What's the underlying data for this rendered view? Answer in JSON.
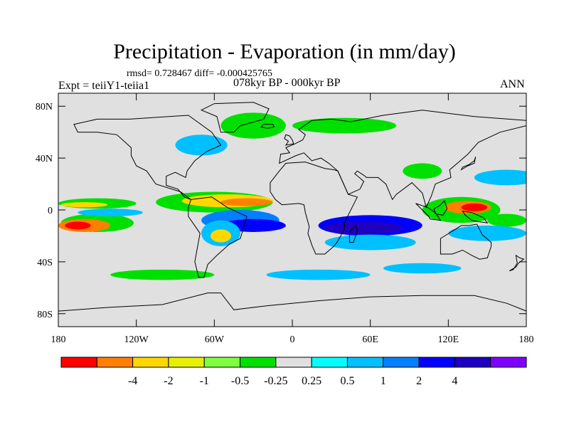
{
  "title": "Precipitation - Evaporation (in mm/day)",
  "stats": "rmsd= 0.728467  diff= -0.000425765",
  "experiment": "Expt = teiiY1-teiia1",
  "period": "078kyr BP - 000kyr BP",
  "season": "ANN",
  "lat_ticks": [
    {
      "label": "80N",
      "lat": 80
    },
    {
      "label": "40N",
      "lat": 40
    },
    {
      "label": "0",
      "lat": 0
    },
    {
      "label": "40S",
      "lat": -40
    },
    {
      "label": "80S",
      "lat": -80
    }
  ],
  "lon_ticks": [
    {
      "label": "180",
      "lon": -180
    },
    {
      "label": "120W",
      "lon": -120
    },
    {
      "label": "60W",
      "lon": -60
    },
    {
      "label": "0",
      "lon": 0
    },
    {
      "label": "60E",
      "lon": 60
    },
    {
      "label": "120E",
      "lon": 120
    },
    {
      "label": "180",
      "lon": 180
    }
  ],
  "colorbar": {
    "colors": [
      "#ff0000",
      "#ff8000",
      "#ffd700",
      "#e6f000",
      "#80ff40",
      "#00e000",
      "#e0e0e0",
      "#00ffff",
      "#00c0ff",
      "#0080ff",
      "#0000ff",
      "#2000c0",
      "#8000ff"
    ],
    "labels": [
      "-4",
      "-2",
      "-1",
      "-0.5",
      "-0.25",
      "0.25",
      "0.5",
      "1",
      "2",
      "4"
    ]
  },
  "map": {
    "background_color": "#e0e0e0",
    "lon_range": [
      -180,
      180
    ],
    "lat_range": [
      -90,
      90
    ],
    "anomaly_patches": [
      {
        "lon": -150,
        "lat": 5,
        "rlon": 30,
        "rlat": 4,
        "color": "#00e000"
      },
      {
        "lon": -160,
        "lat": 4,
        "rlon": 18,
        "rlat": 2,
        "color": "#ffd700"
      },
      {
        "lon": -150,
        "lat": -10,
        "rlon": 28,
        "rlat": 7,
        "color": "#00e000"
      },
      {
        "lon": -160,
        "lat": -12,
        "rlon": 20,
        "rlat": 5,
        "color": "#ff8000"
      },
      {
        "lon": -165,
        "lat": -12,
        "rlon": 10,
        "rlat": 3,
        "color": "#ff0000"
      },
      {
        "lon": -140,
        "lat": -2,
        "rlon": 25,
        "rlat": 3,
        "color": "#00c0ff"
      },
      {
        "lon": -60,
        "lat": 6,
        "rlon": 45,
        "rlat": 8,
        "color": "#00e000"
      },
      {
        "lon": -50,
        "lat": 7,
        "rlon": 35,
        "rlat": 5,
        "color": "#ffd700"
      },
      {
        "lon": -35,
        "lat": 6,
        "rlon": 20,
        "rlat": 3,
        "color": "#ff8000"
      },
      {
        "lon": -40,
        "lat": -8,
        "rlon": 30,
        "rlat": 8,
        "color": "#0080ff"
      },
      {
        "lon": -30,
        "lat": -12,
        "rlon": 25,
        "rlat": 5,
        "color": "#0000ff"
      },
      {
        "lon": -55,
        "lat": -18,
        "rlon": 15,
        "rlat": 10,
        "color": "#00c0ff"
      },
      {
        "lon": -55,
        "lat": -20,
        "rlon": 8,
        "rlat": 5,
        "color": "#ffd700"
      },
      {
        "lon": 60,
        "lat": -12,
        "rlon": 40,
        "rlat": 8,
        "color": "#0000ff"
      },
      {
        "lon": 55,
        "lat": -14,
        "rlon": 30,
        "rlat": 5,
        "color": "#2000c0"
      },
      {
        "lon": 60,
        "lat": -25,
        "rlon": 35,
        "rlat": 6,
        "color": "#00c0ff"
      },
      {
        "lon": 130,
        "lat": 0,
        "rlon": 30,
        "rlat": 10,
        "color": "#00e000"
      },
      {
        "lon": 135,
        "lat": 2,
        "rlon": 18,
        "rlat": 5,
        "color": "#ff8000"
      },
      {
        "lon": 140,
        "lat": 2,
        "rlon": 10,
        "rlat": 3,
        "color": "#ff0000"
      },
      {
        "lon": 165,
        "lat": -8,
        "rlon": 15,
        "rlat": 5,
        "color": "#00e000"
      },
      {
        "lon": 150,
        "lat": -18,
        "rlon": 30,
        "rlat": 6,
        "color": "#00c0ff"
      },
      {
        "lon": 165,
        "lat": 25,
        "rlon": 25,
        "rlat": 6,
        "color": "#00c0ff"
      },
      {
        "lon": -30,
        "lat": 65,
        "rlon": 25,
        "rlat": 10,
        "color": "#00e000"
      },
      {
        "lon": -70,
        "lat": 50,
        "rlon": 20,
        "rlat": 8,
        "color": "#00c0ff"
      },
      {
        "lon": 40,
        "lat": 65,
        "rlon": 40,
        "rlat": 6,
        "color": "#00e000"
      },
      {
        "lon": 100,
        "lat": 30,
        "rlon": 15,
        "rlat": 6,
        "color": "#00e000"
      },
      {
        "lon": -100,
        "lat": -50,
        "rlon": 40,
        "rlat": 4,
        "color": "#00e000"
      },
      {
        "lon": 20,
        "lat": -50,
        "rlon": 40,
        "rlat": 4,
        "color": "#00c0ff"
      },
      {
        "lon": 100,
        "lat": -45,
        "rlon": 30,
        "rlat": 4,
        "color": "#00c0ff"
      }
    ]
  }
}
